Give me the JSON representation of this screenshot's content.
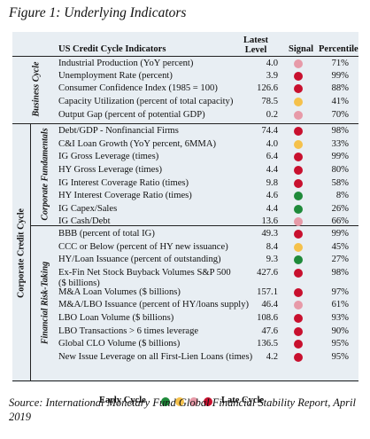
{
  "title": "Figure 1: Underlying Indicators",
  "header": {
    "indicators": "US Credit Cycle Indicators",
    "latest": "Latest",
    "level": "Level",
    "signal": "Signal",
    "percentile": "Percentile"
  },
  "groups": {
    "business_cycle": "Business Cycle",
    "corporate_fundamentals": "Corporate Fundamentals",
    "financial_risk_taking": "Financial Risk-Taking",
    "corporate_credit_cycle": "Corporate Credit Cycle"
  },
  "colors": {
    "green": "#1f8a3a",
    "yellow": "#f5c14b",
    "pink": "#e79aa8",
    "red": "#c8102e",
    "panel_bg": "#e8eef3"
  },
  "rows": [
    {
      "label": "Industrial Production (YoY percent)",
      "level": "4.0",
      "signal": "pink",
      "percentile": "71%"
    },
    {
      "label": "Unemployment Rate (percent)",
      "level": "3.9",
      "signal": "red",
      "percentile": "99%"
    },
    {
      "label": "Consumer Confidence Index (1985 = 100)",
      "level": "126.6",
      "signal": "red",
      "percentile": "88%"
    },
    {
      "label": "Capacity Utilization (percent of total capacity)",
      "level": "78.5",
      "signal": "yellow",
      "percentile": "41%"
    },
    {
      "label": "Output Gap (percent of potential GDP)",
      "level": "0.2",
      "signal": "pink",
      "percentile": "70%"
    },
    {
      "label": "Debt/GDP - Nonfinancial Firms",
      "level": "74.4",
      "signal": "red",
      "percentile": "98%"
    },
    {
      "label": "C&I Loan Growth (YoY percent, 6MMA)",
      "level": "4.0",
      "signal": "yellow",
      "percentile": "33%"
    },
    {
      "label": "IG Gross Leverage (times)",
      "level": "6.4",
      "signal": "red",
      "percentile": "99%"
    },
    {
      "label": "HY Gross Leverage (times)",
      "level": "4.4",
      "signal": "red",
      "percentile": "80%"
    },
    {
      "label": "IG Interest Coverage Ratio (times)",
      "level": "9.8",
      "signal": "red",
      "percentile": "58%"
    },
    {
      "label": "HY Interest Coverage Ratio (times)",
      "level": "4.6",
      "signal": "green",
      "percentile": "8%"
    },
    {
      "label": "IG Capex/Sales",
      "level": "4.4",
      "signal": "green",
      "percentile": "26%"
    },
    {
      "label": "IG Cash/Debt",
      "level": "13.6",
      "signal": "pink",
      "percentile": "66%"
    },
    {
      "label": "BBB (percent of total IG)",
      "level": "49.3",
      "signal": "red",
      "percentile": "99%"
    },
    {
      "label": "CCC or Below (percent of HY new issuance)",
      "level": "8.4",
      "signal": "yellow",
      "percentile": "45%"
    },
    {
      "label": "HY/Loan Issuance (percent of outstanding)",
      "level": "9.3",
      "signal": "green",
      "percentile": "27%"
    },
    {
      "label": "Ex-Fin Net Stock Buyback Volumes S&P 500",
      "label2": "($ billions)",
      "level": "427.6",
      "signal": "red",
      "percentile": "98%"
    },
    {
      "label": "M&A Loan Volumes ($ billions)",
      "level": "157.1",
      "signal": "red",
      "percentile": "97%"
    },
    {
      "label": "M&A/LBO Issuance (percent of HY/loans supply)",
      "level": "46.4",
      "signal": "pink",
      "percentile": "61%"
    },
    {
      "label": "LBO Loan Volume ($ billions)",
      "level": "108.6",
      "signal": "red",
      "percentile": "93%"
    },
    {
      "label": "LBO Transactions > 6 times leverage",
      "level": "47.6",
      "signal": "red",
      "percentile": "90%"
    },
    {
      "label": "Global CLO Volume ($ billions)",
      "level": "136.5",
      "signal": "red",
      "percentile": "95%"
    },
    {
      "label": "New Issue Leverage on all First-Lien Loans (times)",
      "level": "4.2",
      "signal": "red",
      "percentile": "95%"
    }
  ],
  "legend": {
    "early": "Early Cycle",
    "late": "Late Cycle",
    "order": [
      "green",
      "yellow",
      "pink",
      "red"
    ]
  },
  "source": "Source: International Monetary Fund Global Financial Stability Report, April 2019"
}
